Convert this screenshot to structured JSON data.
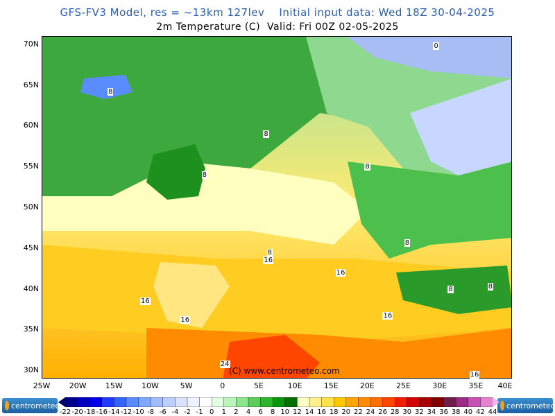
{
  "header": {
    "line1": "GFS-FV3 Model, res = ~13km 127lev    Initial input data: Wed 18Z 30-04-2025",
    "line2": "2m Temperature (C)  Valid: Fri 00Z 02-05-2025"
  },
  "map": {
    "lat_labels": [
      "70N",
      "65N",
      "60N",
      "55N",
      "50N",
      "45N",
      "40N",
      "35N",
      "30N"
    ],
    "lon_labels": [
      "25W",
      "20W",
      "15W",
      "10W",
      "5W",
      "0",
      "5E",
      "10E",
      "15E",
      "20E",
      "25E",
      "30E",
      "35E",
      "40E"
    ],
    "lon_extent": [
      -25,
      40
    ],
    "lat_extent": [
      29,
      71
    ],
    "watermark": "(C) www.centrometeo.com",
    "contour_labels": [
      {
        "text": "0",
        "lon": 29.5,
        "lat": 69.8
      },
      {
        "text": "8",
        "lon": -15.5,
        "lat": 64.2
      },
      {
        "text": "8",
        "lon": 6.0,
        "lat": 59.0
      },
      {
        "text": "8",
        "lon": -2.5,
        "lat": 54.0
      },
      {
        "text": "8",
        "lon": 20.0,
        "lat": 55.0
      },
      {
        "text": "8",
        "lon": 25.5,
        "lat": 45.7
      },
      {
        "text": "8",
        "lon": 6.5,
        "lat": 44.5
      },
      {
        "text": "16",
        "lon": 6.0,
        "lat": 43.5
      },
      {
        "text": "16",
        "lon": 16.0,
        "lat": 42.0
      },
      {
        "text": "8",
        "lon": 31.5,
        "lat": 40.0
      },
      {
        "text": "8",
        "lon": 37.0,
        "lat": 40.3
      },
      {
        "text": "16",
        "lon": -11.0,
        "lat": 38.5
      },
      {
        "text": "16",
        "lon": -5.5,
        "lat": 36.2
      },
      {
        "text": "16",
        "lon": 22.5,
        "lat": 36.7
      },
      {
        "text": "24",
        "lon": 0.0,
        "lat": 30.8
      },
      {
        "text": "16",
        "lon": 34.5,
        "lat": 29.5
      }
    ]
  },
  "legend": {
    "logo_text": "centrometeo",
    "tick_labels": [
      "-22",
      "-20",
      "-18",
      "-16",
      "-14",
      "-12",
      "-10",
      "-8",
      "-6",
      "-4",
      "-2",
      "-1",
      "0",
      "1",
      "2",
      "4",
      "6",
      "8",
      "10",
      "12",
      "14",
      "16",
      "18",
      "20",
      "22",
      "24",
      "26",
      "28",
      "30",
      "32",
      "34",
      "36",
      "38",
      "40",
      "42",
      "44"
    ],
    "colors": [
      "#000064",
      "#00008c",
      "#0000be",
      "#0000e6",
      "#1e3cff",
      "#3264ff",
      "#5a8cff",
      "#7ea8ff",
      "#9fbdff",
      "#bcd0ff",
      "#d9e3ff",
      "#eef2ff",
      "#ffffff",
      "#e0ffe0",
      "#b8f5b8",
      "#8ce68c",
      "#5acd5a",
      "#2db42d",
      "#0a960a",
      "#006e00",
      "#ffffc8",
      "#fff08c",
      "#ffe14b",
      "#ffc800",
      "#ffa500",
      "#ff8c00",
      "#ff6e00",
      "#ff4600",
      "#f01e00",
      "#d20000",
      "#aa0000",
      "#820000",
      "#6e1e4b",
      "#9b2d87",
      "#c850b4",
      "#e682d2",
      "#f5b4eb"
    ]
  }
}
